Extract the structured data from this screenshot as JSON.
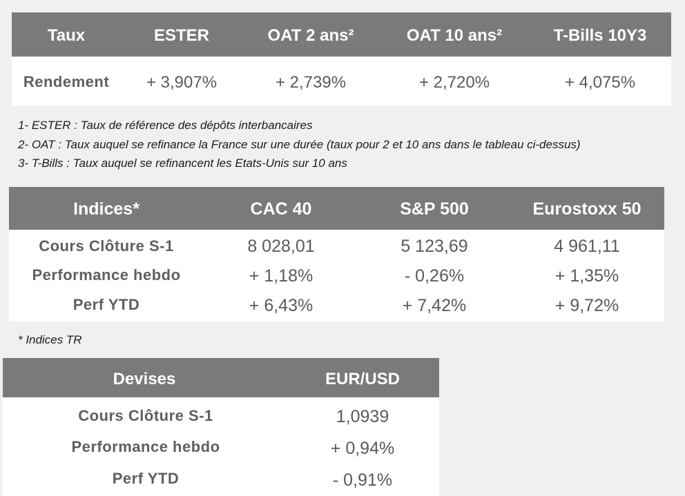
{
  "taux": {
    "header": [
      "Taux",
      "ESTER",
      "OAT 2 ans²",
      "OAT 10 ans²",
      "T-Bills 10Y3"
    ],
    "row": {
      "label": "Rendement",
      "values": [
        "+ 3,907%",
        "+ 2,739%",
        "+ 2,720%",
        "+ 4,075%"
      ]
    }
  },
  "notes": [
    "1- ESTER : Taux de référence des dépôts interbancaires",
    "2- OAT : Taux auquel se refinance la France sur une durée (taux pour 2 et 10 ans dans le tableau ci-dessus)",
    "3- T-Bills : Taux auquel se refinancent les Etats-Unis sur 10 ans"
  ],
  "indices": {
    "header": [
      "Indices*",
      "CAC 40",
      "S&P 500",
      "Eurostoxx 50"
    ],
    "rows": [
      {
        "label": "Cours Clôture S-1",
        "values": [
          "8 028,01",
          "5 123,69",
          "4 961,11"
        ]
      },
      {
        "label": "Performance hebdo",
        "values": [
          "+ 1,18%",
          "- 0,26%",
          "+ 1,35%"
        ]
      },
      {
        "label": "Perf YTD",
        "values": [
          "+ 6,43%",
          "+ 7,42%",
          "+ 9,72%"
        ]
      }
    ],
    "footnote": "* Indices TR"
  },
  "devises": {
    "header": [
      "Devises",
      "EUR/USD"
    ],
    "rows": [
      {
        "label": "Cours Clôture S-1",
        "value": "1,0939"
      },
      {
        "label": "Performance hebdo",
        "value": "+ 0,94%"
      },
      {
        "label": "Perf YTD",
        "value": "- 0,91%"
      }
    ]
  }
}
